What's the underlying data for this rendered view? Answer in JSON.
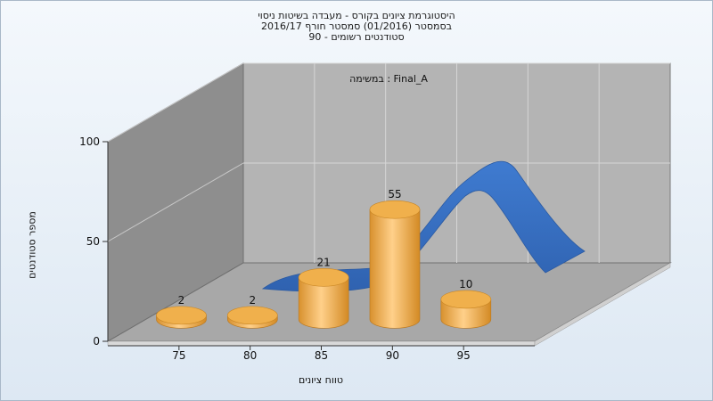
{
  "chart_data": {
    "type": "bar",
    "title_lines": [
      "היסטוגרמת ציונים בקורס - מעבדה בשיטות ניסוי",
      "בסמסטר  (01/2016)  סמסטר חורף 2016/17",
      "סטודנטים רשומים - 90"
    ],
    "annotation": "במשימה : Final_A",
    "xlabel": "טווח ציונים",
    "ylabel": "מספר סטודנטים",
    "categories": [
      "70-75",
      "75-80",
      "80-85",
      "85-90",
      "90-95"
    ],
    "values": [
      2,
      2,
      21,
      55,
      10
    ],
    "x_ticks": [
      75,
      80,
      85,
      90,
      95
    ],
    "y_ticks": [
      0,
      50,
      100
    ],
    "ylim": [
      0,
      100
    ],
    "grid": true,
    "trend_curve": "blue-3d-ribbon",
    "colors": {
      "bar": "#e8a23c",
      "bar_top": "#f2b64e",
      "curve": "#3a72c4",
      "back_wall": "#b3b3b3",
      "side_wall": "#8c8c8c",
      "floor": "#a6a6a6"
    }
  }
}
